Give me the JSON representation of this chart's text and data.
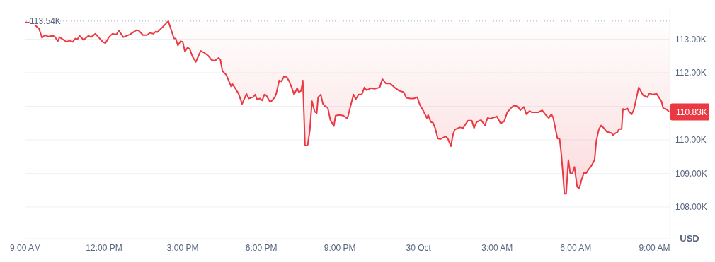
{
  "chart_data": {
    "type": "line",
    "ylabel": "USD",
    "x": [
      "--10-29T09:00",
      "--10-29T09:16",
      "--10-29T09:31",
      "--10-29T09:38",
      "--10-29T09:44",
      "--10-29T09:52",
      "--10-29T10:02",
      "--10-29T10:07",
      "--10-29T10:14",
      "--10-29T10:18",
      "--10-29T10:34",
      "--10-29T10:42",
      "--10-29T10:48",
      "--10-29T10:54",
      "--10-29T10:59",
      "--10-29T11:04",
      "--10-29T11:13",
      "--10-29T11:24",
      "--10-29T11:30",
      "--10-29T11:40",
      "--10-29T11:47",
      "--10-29T11:57",
      "--10-29T12:03",
      "--10-29T12:11",
      "--10-29T12:19",
      "--10-29T12:28",
      "--10-29T12:34",
      "--10-29T12:44",
      "--10-29T12:59",
      "--10-29T13:14",
      "--10-29T13:20",
      "--10-29T13:29",
      "--10-29T13:38",
      "--10-29T13:45",
      "--10-29T13:53",
      "--10-29T13:58",
      "--10-29T14:02",
      "--10-29T14:13",
      "--10-29T14:27",
      "--10-29T14:40",
      "--10-29T14:44",
      "--10-29T14:49",
      "--10-29T14:55",
      "--10-29T15:00",
      "--10-29T15:05",
      "--10-29T15:11",
      "--10-29T15:16",
      "--10-29T15:22",
      "--10-29T15:30",
      "--10-29T15:41",
      "--10-29T15:50",
      "--10-29T15:58",
      "--10-29T16:06",
      "--10-29T16:14",
      "--10-29T16:22",
      "--10-29T16:26",
      "--10-29T16:31",
      "--10-29T16:40",
      "--10-29T16:51",
      "--10-29T16:54",
      "--10-29T17:01",
      "--10-29T17:08",
      "--10-29T17:16",
      "--10-29T17:26",
      "--10-29T17:31",
      "--10-29T17:41",
      "--10-29T17:46",
      "--10-29T17:50",
      "--10-29T17:57",
      "--10-29T18:02",
      "--10-29T18:07",
      "--10-29T18:11",
      "--10-29T18:19",
      "--10-29T18:23",
      "--10-29T18:31",
      "--10-29T18:34",
      "--10-29T18:41",
      "--10-29T18:46",
      "--10-29T18:52",
      "--10-29T18:58",
      "--10-29T19:04",
      "--10-29T19:10",
      "--10-29T19:15",
      "--10-29T19:22",
      "--10-29T19:26",
      "--10-29T19:31",
      "--10-29T19:35",
      "--10-29T19:40",
      "--10-29T19:46",
      "--10-29T19:51",
      "--10-29T19:56",
      "--10-29T20:02",
      "--10-29T20:07",
      "--10-29T20:10",
      "--10-29T20:16",
      "--10-29T20:21",
      "--10-29T20:26",
      "--10-29T20:32",
      "--10-29T20:38",
      "--10-29T20:46",
      "--10-29T20:50",
      "--10-29T20:58",
      "--10-29T21:08",
      "--10-29T21:17",
      "--10-29T21:23",
      "--10-29T21:31",
      "--10-29T21:36",
      "--10-29T21:43",
      "--10-29T21:50",
      "--10-29T21:56",
      "--10-29T22:01",
      "--10-29T22:11",
      "--10-29T22:19",
      "--10-29T22:31",
      "--10-29T22:37",
      "--10-29T22:45",
      "--10-29T22:55",
      "--10-29T23:05",
      "--10-29T23:16",
      "--10-29T23:26",
      "--10-29T23:32",
      "--10-29T23:41",
      "--10-29T23:49",
      "--10-29T23:57",
      "--10-30T00:03",
      "--10-30T00:11",
      "--10-30T00:19",
      "--10-30T00:22",
      "--10-30T00:28",
      "--10-30T00:33",
      "--10-30T00:38",
      "--10-30T00:44",
      "--10-30T00:50",
      "--10-30T01:02",
      "--10-30T01:07",
      "--10-30T01:14",
      "--10-30T01:19",
      "--10-30T01:23",
      "--10-30T01:34",
      "--10-30T01:42",
      "--10-30T01:53",
      "--10-30T02:02",
      "--10-30T02:07",
      "--10-30T02:13",
      "--10-30T02:23",
      "--10-30T02:32",
      "--10-30T02:38",
      "--10-30T02:44",
      "--10-30T02:54",
      "--10-30T02:59",
      "--10-30T03:08",
      "--10-30T03:16",
      "--10-30T03:23",
      "--10-30T03:31",
      "--10-30T03:38",
      "--10-30T03:47",
      "--10-30T03:53",
      "--10-30T04:01",
      "--10-30T04:07",
      "--10-30T04:14",
      "--10-30T04:19",
      "--10-30T04:34",
      "--10-30T04:43",
      "--10-30T04:50",
      "--10-30T04:58",
      "--10-30T05:04",
      "--10-30T05:08",
      "--10-30T05:18",
      "--10-30T05:23",
      "--10-30T05:27",
      "--10-30T05:34",
      "--10-30T05:38",
      "--10-30T05:43",
      "--10-30T05:47",
      "--10-30T05:52",
      "--10-30T05:57",
      "--10-30T06:03",
      "--10-30T06:08",
      "--10-30T06:13",
      "--10-30T06:19",
      "--10-30T06:23",
      "--10-30T06:28",
      "--10-30T06:35",
      "--10-30T06:43",
      "--10-30T06:47",
      "--10-30T06:53",
      "--10-30T06:58",
      "--10-30T07:04",
      "--10-30T07:11",
      "--10-30T07:22",
      "--10-30T07:25",
      "--10-30T07:31",
      "--10-30T07:35",
      "--10-30T07:39",
      "--10-30T07:45",
      "--10-30T07:48",
      "--10-30T07:53",
      "--10-30T07:58",
      "--10-30T08:02",
      "--10-30T08:08",
      "--10-30T08:13",
      "--10-30T08:24",
      "--10-30T08:34",
      "--10-30T08:44",
      "--10-30T08:49",
      "--10-30T08:55",
      "--10-30T09:05",
      "--10-30T09:10",
      "--10-30T09:16",
      "--10-30T09:20",
      "--10-30T09:26",
      "--10-30T09:35"
    ],
    "series": [
      {
        "color": "#ea3943",
        "values": [
          113.5,
          113.49,
          113.31,
          113.04,
          113.12,
          113.08,
          113.1,
          113.08,
          112.94,
          113.06,
          112.92,
          112.96,
          112.92,
          113.02,
          113.0,
          113.1,
          112.98,
          113.1,
          113.06,
          113.16,
          113.06,
          112.92,
          112.88,
          113.06,
          113.16,
          113.14,
          113.25,
          113.06,
          113.14,
          113.27,
          113.25,
          113.12,
          113.12,
          113.19,
          113.16,
          113.23,
          113.21,
          113.35,
          113.54,
          113.02,
          113.02,
          112.81,
          112.94,
          112.92,
          112.63,
          112.75,
          112.71,
          112.49,
          112.32,
          112.65,
          112.59,
          112.51,
          112.38,
          112.36,
          112.44,
          112.4,
          112.05,
          111.93,
          111.58,
          111.66,
          111.52,
          111.37,
          111.07,
          111.37,
          111.23,
          111.27,
          111.35,
          111.21,
          111.23,
          111.17,
          111.35,
          111.33,
          111.15,
          111.15,
          111.27,
          111.37,
          111.77,
          111.74,
          111.89,
          111.87,
          111.74,
          111.54,
          111.35,
          111.54,
          111.42,
          111.46,
          111.77,
          109.83,
          109.83,
          110.28,
          111.15,
          110.84,
          110.8,
          111.27,
          111.35,
          111.07,
          111.0,
          110.96,
          110.59,
          110.41,
          110.72,
          110.74,
          110.72,
          110.63,
          110.94,
          111.35,
          111.21,
          111.35,
          111.35,
          111.56,
          111.48,
          111.54,
          111.52,
          111.56,
          111.81,
          111.68,
          111.68,
          111.56,
          111.46,
          111.42,
          111.25,
          111.23,
          111.23,
          111.27,
          111.04,
          110.86,
          110.65,
          110.74,
          110.53,
          110.51,
          110.35,
          110.04,
          110.02,
          110.1,
          110.04,
          109.81,
          110.16,
          110.3,
          110.37,
          110.35,
          110.57,
          110.57,
          110.35,
          110.53,
          110.59,
          110.43,
          110.65,
          110.63,
          110.67,
          110.7,
          110.49,
          110.55,
          110.82,
          110.94,
          111.02,
          111.0,
          110.88,
          110.98,
          110.76,
          110.86,
          110.82,
          110.82,
          110.88,
          110.76,
          110.65,
          110.76,
          110.67,
          110.04,
          110.02,
          109.56,
          108.39,
          108.39,
          109.4,
          109.01,
          108.99,
          109.19,
          108.6,
          108.55,
          108.8,
          109.03,
          108.99,
          109.09,
          109.21,
          109.4,
          109.97,
          110.32,
          110.43,
          110.35,
          110.24,
          110.2,
          110.14,
          110.2,
          110.22,
          110.32,
          110.32,
          110.92,
          110.9,
          110.94,
          110.84,
          110.76,
          110.9,
          111.56,
          111.33,
          111.27,
          111.39,
          111.35,
          111.37,
          111.27,
          111.15,
          110.94,
          110.92,
          110.83
        ]
      }
    ],
    "xlim": [
      "--10-29T09:00",
      "--10-30T09:35"
    ],
    "xticks": [
      {
        "value": "--10-29T09:00",
        "label": "9:00 AM"
      },
      {
        "value": "--10-29T12:00",
        "label": "12:00 PM"
      },
      {
        "value": "--10-29T15:00",
        "label": "3:00 PM"
      },
      {
        "value": "--10-29T18:00",
        "label": "6:00 PM"
      },
      {
        "value": "--10-29T21:00",
        "label": "9:00 PM"
      },
      {
        "value": "--10-30T00:00",
        "label": "30 Oct"
      },
      {
        "value": "--10-30T03:00",
        "label": "3:00 AM"
      },
      {
        "value": "--10-30T06:00",
        "label": "6:00 AM"
      },
      {
        "value": "--10-30T09:00",
        "label": "9:00 AM"
      }
    ],
    "ylim": [
      107.05,
      114
    ],
    "yticks": [
      {
        "value": 108,
        "label": "108.00K"
      },
      {
        "value": 109,
        "label": "109.00K"
      },
      {
        "value": 110,
        "label": "110.00K"
      },
      {
        "value": 111,
        "label": null
      },
      {
        "value": 112,
        "label": "112.00K"
      },
      {
        "value": 113,
        "label": "113.00K"
      }
    ],
    "ref_lines": [
      {
        "axis": "y",
        "value": 113.54,
        "label": "113.54K",
        "color": "#a6b0c3",
        "line_style": "dotted"
      }
    ],
    "annotations": [
      {
        "text": "110.83K",
        "x": "--10-30T09:35",
        "y": 110.83
      }
    ],
    "grid": "y",
    "marker": "none",
    "line_style": "solid"
  }
}
